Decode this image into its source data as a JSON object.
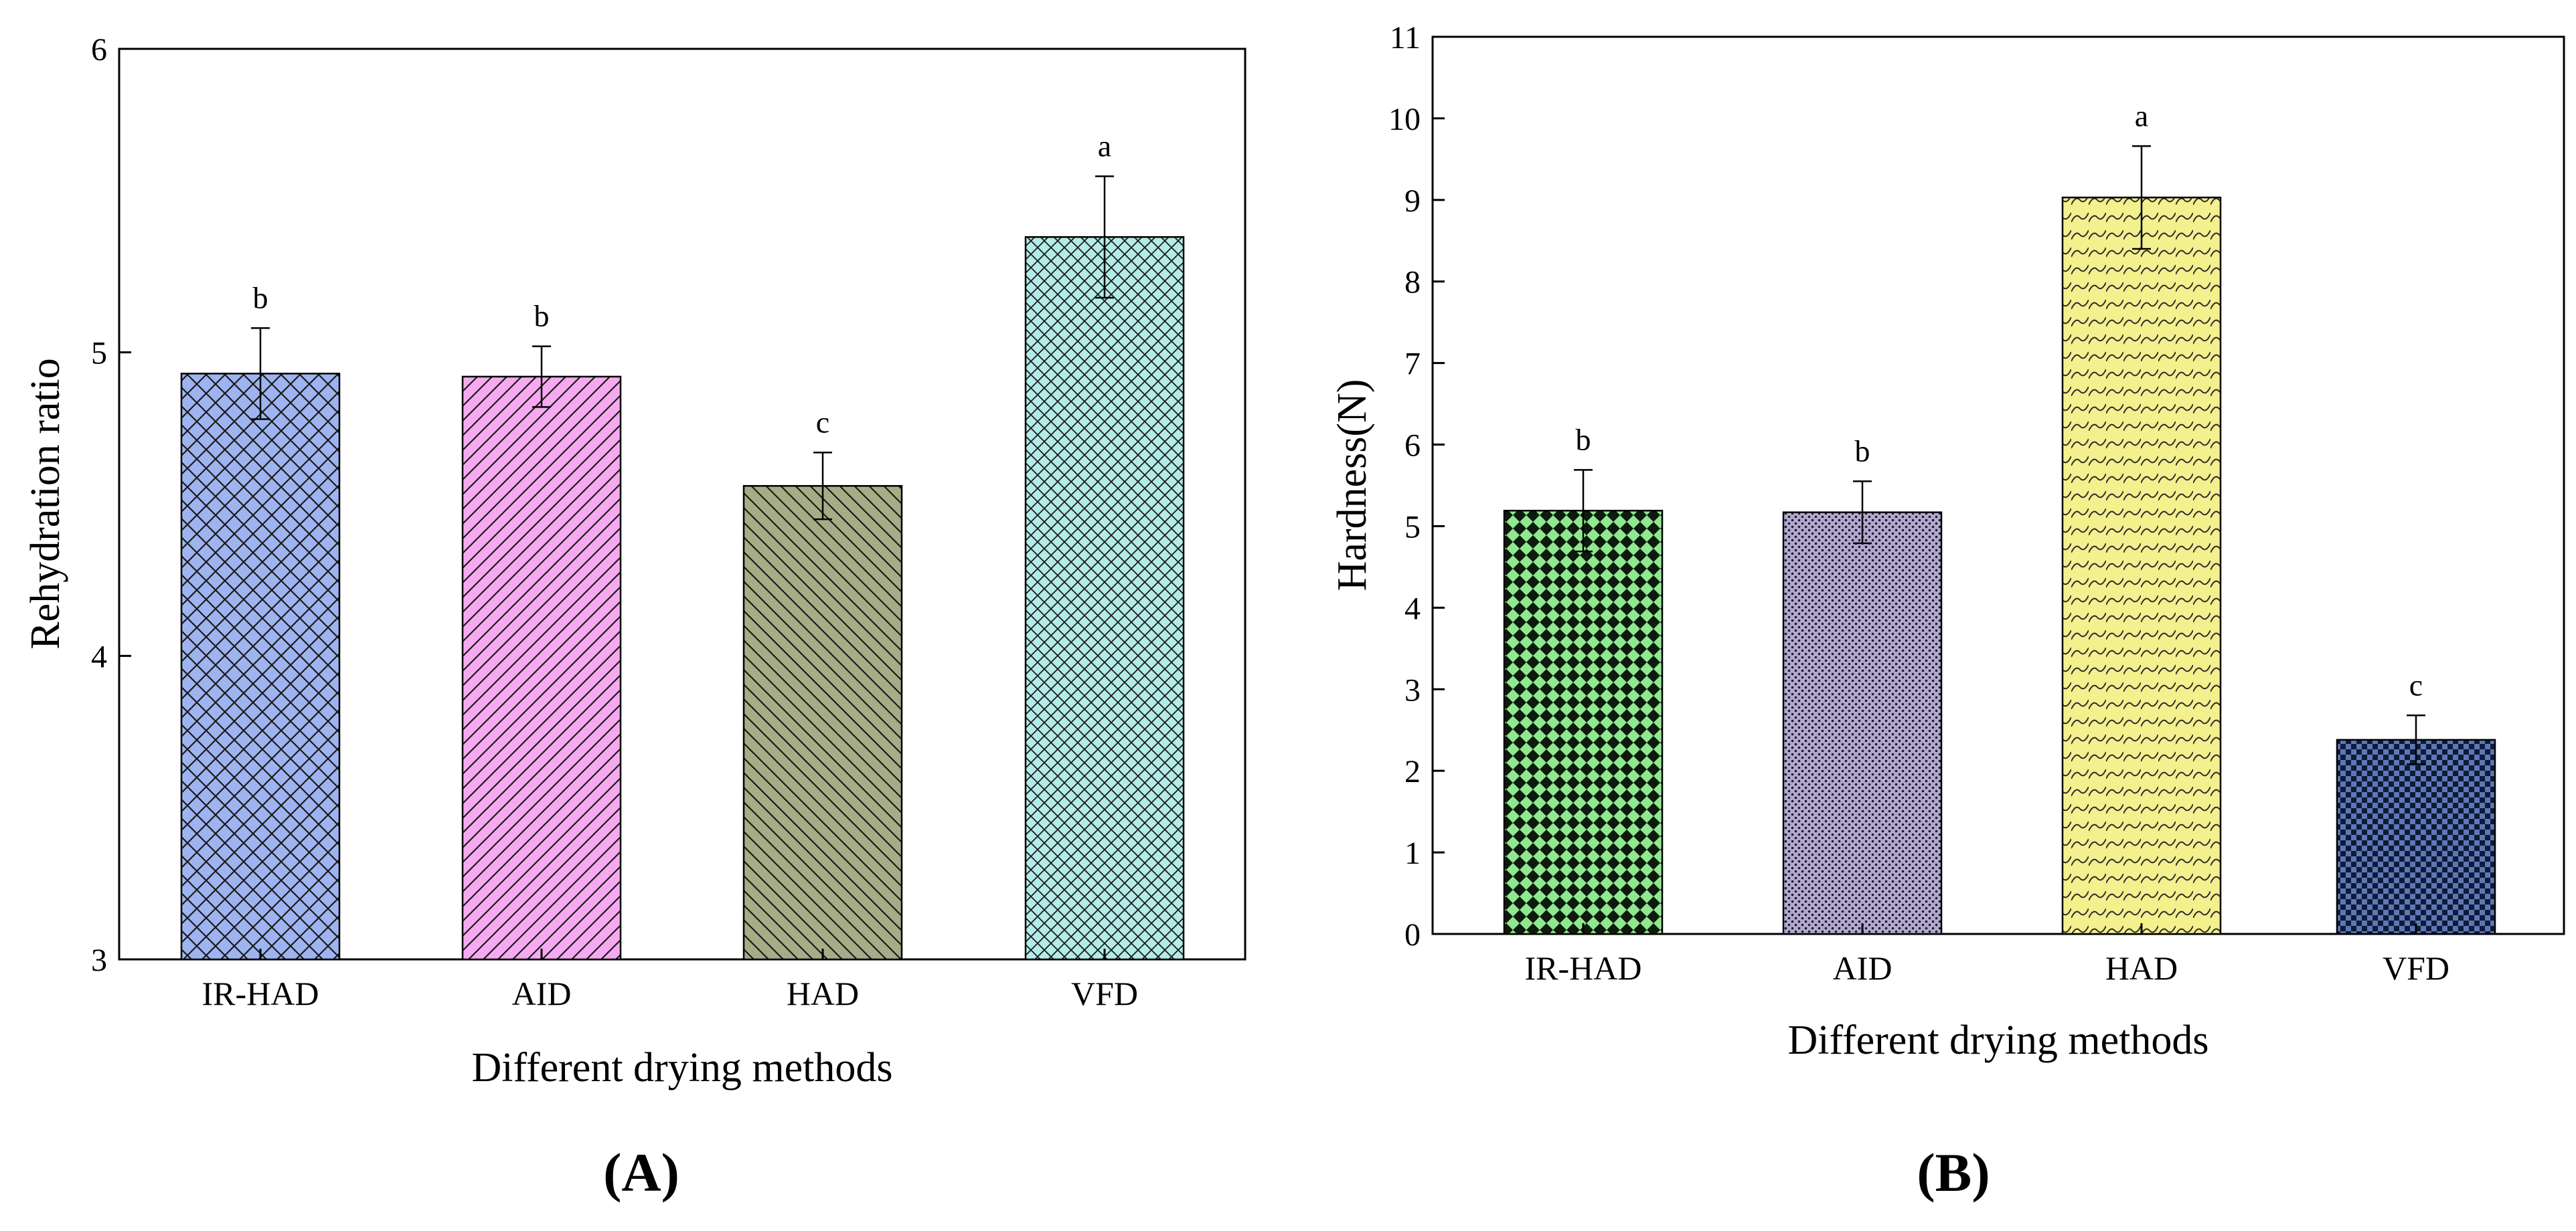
{
  "chart_data": [
    {
      "type": "bar",
      "panel_label": "(A)",
      "categories": [
        "IR-HAD",
        "AID",
        "HAD",
        "VFD"
      ],
      "values": [
        4.93,
        4.92,
        4.56,
        5.38
      ],
      "errors": [
        0.15,
        0.1,
        0.11,
        0.2
      ],
      "significance": [
        "b",
        "b",
        "c",
        "a"
      ],
      "xlabel": "Different drying methods",
      "ylabel": "Rehydration ratio",
      "ylim": [
        3,
        6
      ],
      "yticks": [
        3,
        4,
        5,
        6
      ],
      "grid": false,
      "colors": [
        "#9db4f0",
        "#f6a9f0",
        "#a6ad86",
        "#b2ebe7"
      ],
      "patterns": [
        "crosshatch",
        "diagonal-up",
        "diagonal-down",
        "crosshatch-fine"
      ]
    },
    {
      "type": "bar",
      "panel_label": "(B)",
      "categories": [
        "IR-HAD",
        "AID",
        "HAD",
        "VFD"
      ],
      "values": [
        5.19,
        5.17,
        9.03,
        2.38
      ],
      "errors": [
        0.5,
        0.38,
        0.63,
        0.3
      ],
      "significance": [
        "b",
        "b",
        "a",
        "c"
      ],
      "xlabel": "Different drying methods",
      "ylabel": "Hardness(N)",
      "ylim": [
        0,
        11
      ],
      "yticks": [
        0,
        1,
        2,
        3,
        4,
        5,
        6,
        7,
        8,
        9,
        10,
        11
      ],
      "grid": false,
      "colors": [
        "#8fe88f",
        "#b3a8d3",
        "#f3f08e",
        "#5d78b4"
      ],
      "patterns": [
        "checker",
        "dots",
        "wave",
        "grid"
      ]
    }
  ]
}
